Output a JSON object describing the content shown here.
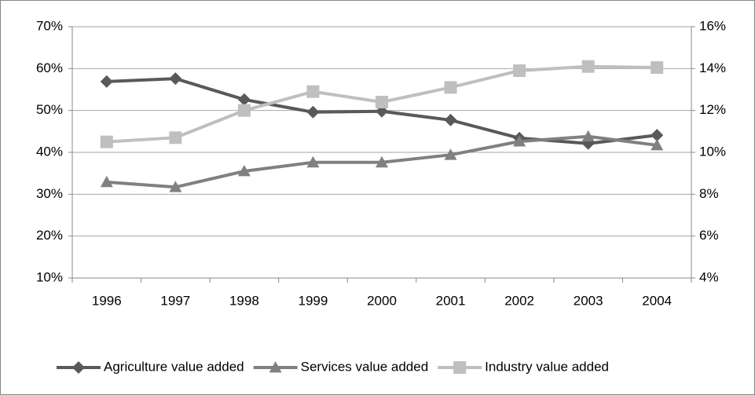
{
  "chart_data": {
    "type": "line",
    "categories": [
      "1996",
      "1997",
      "1998",
      "1999",
      "2000",
      "2001",
      "2002",
      "2003",
      "2004"
    ],
    "series": [
      {
        "name": "Agriculture value added",
        "color": "#595959",
        "marker": "diamond",
        "axis": "y",
        "values": [
          56.9,
          57.6,
          52.6,
          49.6,
          49.8,
          47.7,
          43.4,
          42.1,
          44.1
        ]
      },
      {
        "name": "Services value added",
        "color": "#808080",
        "marker": "triangle",
        "axis": "y",
        "values": [
          32.9,
          31.7,
          35.5,
          37.6,
          37.6,
          39.4,
          42.6,
          43.8,
          41.7
        ]
      },
      {
        "name": "Industry value added",
        "color": "#bfbfbf",
        "marker": "square",
        "axis": "y2",
        "values": [
          10.5,
          10.7,
          12.0,
          12.9,
          12.4,
          13.1,
          13.9,
          14.1,
          14.05
        ]
      }
    ],
    "ylim": [
      10,
      70
    ],
    "yticks": [
      {
        "value": 10,
        "label": "10%"
      },
      {
        "value": 20,
        "label": "20%"
      },
      {
        "value": 30,
        "label": "30%"
      },
      {
        "value": 40,
        "label": "40%"
      },
      {
        "value": 50,
        "label": "50%"
      },
      {
        "value": 60,
        "label": "60%"
      },
      {
        "value": 70,
        "label": "70%"
      }
    ],
    "y2lim": [
      4,
      16
    ],
    "y2ticks": [
      {
        "value": 4,
        "label": "4%"
      },
      {
        "value": 6,
        "label": "6%"
      },
      {
        "value": 8,
        "label": "8%"
      },
      {
        "value": 10,
        "label": "10%"
      },
      {
        "value": 12,
        "label": "12%"
      },
      {
        "value": 14,
        "label": "14%"
      },
      {
        "value": 16,
        "label": "16%"
      }
    ],
    "grid": true,
    "legend": "bottom"
  }
}
